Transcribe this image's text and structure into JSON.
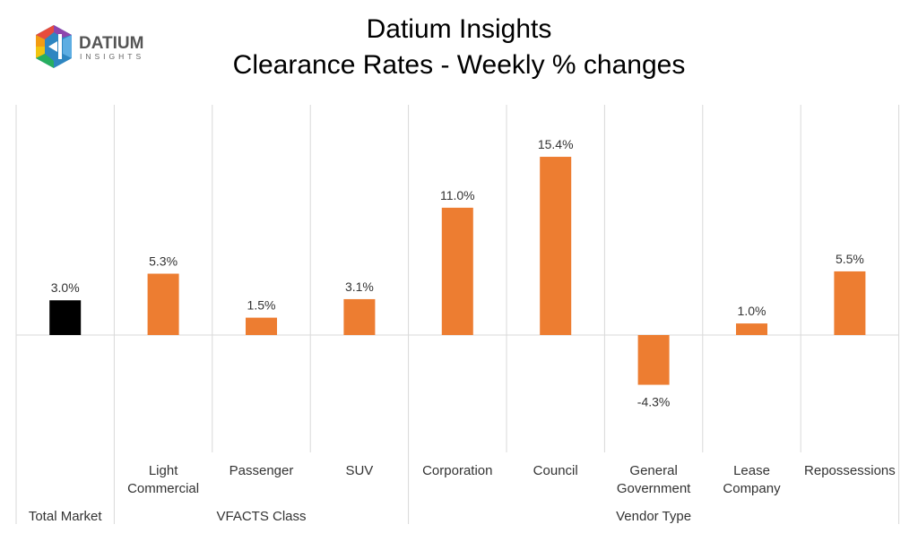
{
  "logo": {
    "word1": "DATIUM",
    "word2": "INSIGHTS"
  },
  "chart_data": {
    "type": "bar",
    "title": "Datium Insights",
    "subtitle": "Clearance Rates - Weekly % changes",
    "categories": [
      "Total Market",
      "Light Commercial",
      "Passenger",
      "SUV",
      "Corporation",
      "Council",
      "General Government",
      "Lease Company",
      "Repossessions"
    ],
    "category_lines": [
      [
        "Total Market"
      ],
      [
        "Light",
        "Commercial"
      ],
      [
        "Passenger"
      ],
      [
        "SUV"
      ],
      [
        "Corporation"
      ],
      [
        "Council"
      ],
      [
        "General",
        "Government"
      ],
      [
        "Lease",
        "Company"
      ],
      [
        "Repossessions"
      ]
    ],
    "groups": [
      {
        "label": "",
        "start": 0,
        "end": 0
      },
      {
        "label": "VFACTS Class",
        "start": 1,
        "end": 3
      },
      {
        "label": "Vendor Type",
        "start": 4,
        "end": 8
      }
    ],
    "values": [
      3.0,
      5.3,
      1.5,
      3.1,
      11.0,
      15.4,
      -4.3,
      1.0,
      5.5
    ],
    "data_labels": [
      "3.0%",
      "5.3%",
      "1.5%",
      "3.1%",
      "11.0%",
      "15.4%",
      "-4.3%",
      "1.0%",
      "5.5%"
    ],
    "colors": [
      "#000000",
      "#ED7D31",
      "#ED7D31",
      "#ED7D31",
      "#ED7D31",
      "#ED7D31",
      "#ED7D31",
      "#ED7D31",
      "#ED7D31"
    ],
    "ylim": [
      -10,
      20
    ],
    "grid": false,
    "legend": "none"
  }
}
